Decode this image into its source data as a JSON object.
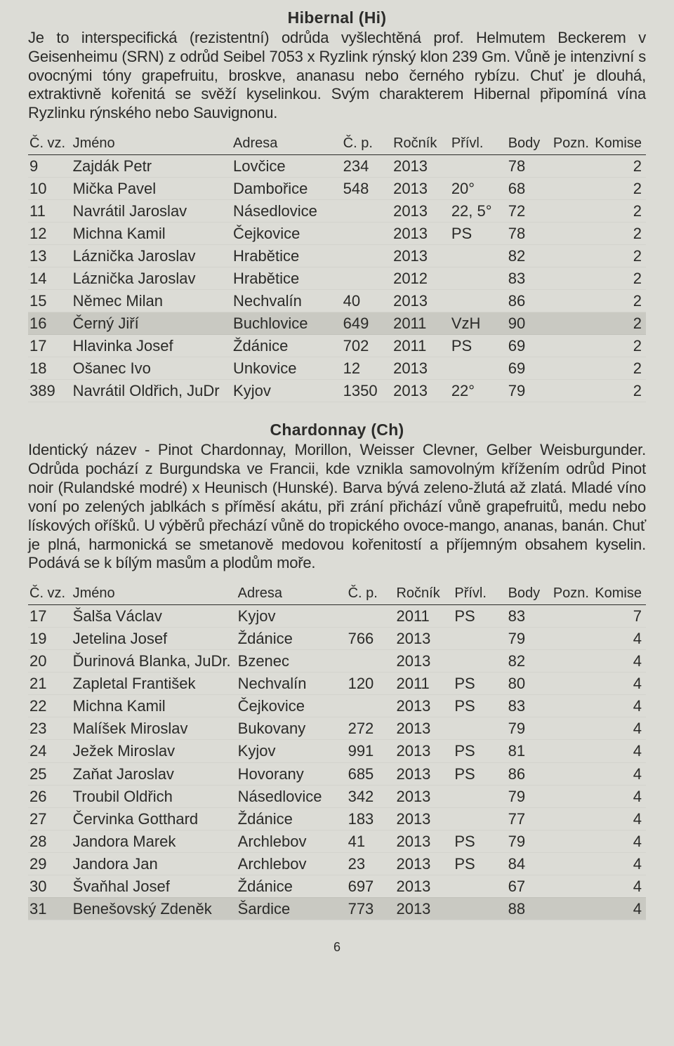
{
  "page_number": "6",
  "columns": {
    "cvz": "Č. vz.",
    "jmeno": "Jméno",
    "adresa": "Adresa",
    "cp": "Č. p.",
    "rocnik": "Ročník",
    "privl": "Přívl.",
    "body": "Body",
    "pozn": "Pozn.",
    "komise": "Komise"
  },
  "sections": [
    {
      "title": "Hibernal (Hi)",
      "desc": "Je to interspecifická (rezistentní) odrůda vyšlechtěná prof. Helmutem Beckerem v Geisenheimu (SRN) z odrůd Seibel 7053 x Ryzlink rýnský klon 239 Gm. Vůně je intenzivní s ovocnými tóny grapefruitu, broskve, ananasu nebo černého rybízu. Chuť je dlouhá, extraktivně kořenitá se svěží kyselinkou. Svým charakterem Hibernal připomíná vína Ryzlinku rýnského nebo Sauvignonu.",
      "rows": [
        {
          "cvz": "9",
          "jmeno": "Zajdák Petr",
          "adresa": "Lovčice",
          "cp": "234",
          "rocnik": "2013",
          "privl": "",
          "body": "78",
          "pozn": "",
          "komise": "2"
        },
        {
          "cvz": "10",
          "jmeno": "Mička Pavel",
          "adresa": "Dambořice",
          "cp": "548",
          "rocnik": "2013",
          "privl": "20°",
          "body": "68",
          "pozn": "",
          "komise": "2"
        },
        {
          "cvz": "11",
          "jmeno": "Navrátil Jaroslav",
          "adresa": "Násedlovice",
          "cp": "",
          "rocnik": "2013",
          "privl": "22, 5°",
          "body": "72",
          "pozn": "",
          "komise": "2"
        },
        {
          "cvz": "12",
          "jmeno": "Michna Kamil",
          "adresa": "Čejkovice",
          "cp": "",
          "rocnik": "2013",
          "privl": "PS",
          "body": "78",
          "pozn": "",
          "komise": "2"
        },
        {
          "cvz": "13",
          "jmeno": "Láznička Jaroslav",
          "adresa": "Hrabětice",
          "cp": "",
          "rocnik": "2013",
          "privl": "",
          "body": "82",
          "pozn": "",
          "komise": "2"
        },
        {
          "cvz": "14",
          "jmeno": "Láznička Jaroslav",
          "adresa": "Hrabětice",
          "cp": "",
          "rocnik": "2012",
          "privl": "",
          "body": "83",
          "pozn": "",
          "komise": "2"
        },
        {
          "cvz": "15",
          "jmeno": "Němec Milan",
          "adresa": "Nechvalín",
          "cp": "40",
          "rocnik": "2013",
          "privl": "",
          "body": "86",
          "pozn": "",
          "komise": "2"
        },
        {
          "cvz": "16",
          "jmeno": "Černý Jiří",
          "adresa": "Buchlovice",
          "cp": "649",
          "rocnik": "2011",
          "privl": "VzH",
          "body": "90",
          "pozn": "",
          "komise": "2",
          "hl": true
        },
        {
          "cvz": "17",
          "jmeno": "Hlavinka Josef",
          "adresa": "Ždánice",
          "cp": "702",
          "rocnik": "2011",
          "privl": "PS",
          "body": "69",
          "pozn": "",
          "komise": "2"
        },
        {
          "cvz": "18",
          "jmeno": "Ošanec Ivo",
          "adresa": "Unkovice",
          "cp": "12",
          "rocnik": "2013",
          "privl": "",
          "body": "69",
          "pozn": "",
          "komise": "2"
        },
        {
          "cvz": "389",
          "jmeno": "Navrátil Oldřich, JuDr",
          "adresa": "Kyjov",
          "cp": "1350",
          "rocnik": "2013",
          "privl": "22°",
          "body": "79",
          "pozn": "",
          "komise": "2"
        }
      ]
    },
    {
      "title": "Chardonnay (Ch)",
      "desc": "Identický název - Pinot Chardonnay, Morillon, Weisser Clevner, Gelber Weisburgunder. Odrůda pochází z Burgundska ve Francii, kde vznikla samovolným křížením odrůd Pinot noir (Rulandské modré) x Heunisch (Hunské). Barva bývá zeleno-žlutá až zlatá. Mladé víno voní po zelených jablkách s příměsí akátu, při zrání přichází vůně grapefruitů, medu nebo lískových oříšků. U výběrů přechází vůně do tropického ovoce-mango, ananas, banán. Chuť je plná, harmonická se smetanově medovou kořenitostí a příjemným obsahem kyselin. Podává se k bílým masům a plodům moře.",
      "rows": [
        {
          "cvz": "17",
          "jmeno": "Šalša Václav",
          "adresa": "Kyjov",
          "cp": "",
          "rocnik": "2011",
          "privl": "PS",
          "body": "83",
          "pozn": "",
          "komise": "7"
        },
        {
          "cvz": "19",
          "jmeno": "Jetelina Josef",
          "adresa": "Ždánice",
          "cp": "766",
          "rocnik": "2013",
          "privl": "",
          "body": "79",
          "pozn": "",
          "komise": "4"
        },
        {
          "cvz": "20",
          "jmeno": "Ďurinová Blanka, JuDr.",
          "adresa": "Bzenec",
          "cp": "",
          "rocnik": "2013",
          "privl": "",
          "body": "82",
          "pozn": "",
          "komise": "4"
        },
        {
          "cvz": "21",
          "jmeno": "Zapletal František",
          "adresa": "Nechvalín",
          "cp": "120",
          "rocnik": "2011",
          "privl": "PS",
          "body": "80",
          "pozn": "",
          "komise": "4"
        },
        {
          "cvz": "22",
          "jmeno": "Michna Kamil",
          "adresa": "Čejkovice",
          "cp": "",
          "rocnik": "2013",
          "privl": "PS",
          "body": "83",
          "pozn": "",
          "komise": "4"
        },
        {
          "cvz": "23",
          "jmeno": "Malíšek Miroslav",
          "adresa": "Bukovany",
          "cp": "272",
          "rocnik": "2013",
          "privl": "",
          "body": "79",
          "pozn": "",
          "komise": "4"
        },
        {
          "cvz": "24",
          "jmeno": "Ježek Miroslav",
          "adresa": "Kyjov",
          "cp": "991",
          "rocnik": "2013",
          "privl": "PS",
          "body": "81",
          "pozn": "",
          "komise": "4"
        },
        {
          "cvz": "25",
          "jmeno": "Zaňat Jaroslav",
          "adresa": "Hovorany",
          "cp": "685",
          "rocnik": "2013",
          "privl": "PS",
          "body": "86",
          "pozn": "",
          "komise": "4"
        },
        {
          "cvz": "26",
          "jmeno": "Troubil Oldřich",
          "adresa": "Násedlovice",
          "cp": "342",
          "rocnik": "2013",
          "privl": "",
          "body": "79",
          "pozn": "",
          "komise": "4"
        },
        {
          "cvz": "27",
          "jmeno": "Červinka Gotthard",
          "adresa": "Ždánice",
          "cp": "183",
          "rocnik": "2013",
          "privl": "",
          "body": "77",
          "pozn": "",
          "komise": "4"
        },
        {
          "cvz": "28",
          "jmeno": "Jandora Marek",
          "adresa": "Archlebov",
          "cp": "41",
          "rocnik": "2013",
          "privl": "PS",
          "body": "79",
          "pozn": "",
          "komise": "4"
        },
        {
          "cvz": "29",
          "jmeno": "Jandora Jan",
          "adresa": "Archlebov",
          "cp": "23",
          "rocnik": "2013",
          "privl": "PS",
          "body": "84",
          "pozn": "",
          "komise": "4"
        },
        {
          "cvz": "30",
          "jmeno": "Švaňhal Josef",
          "adresa": "Ždánice",
          "cp": "697",
          "rocnik": "2013",
          "privl": "",
          "body": "67",
          "pozn": "",
          "komise": "4"
        },
        {
          "cvz": "31",
          "jmeno": "Benešovský Zdeněk",
          "adresa": "Šardice",
          "cp": "773",
          "rocnik": "2013",
          "privl": "",
          "body": "88",
          "pozn": "",
          "komise": "4",
          "hl": true
        }
      ]
    }
  ]
}
